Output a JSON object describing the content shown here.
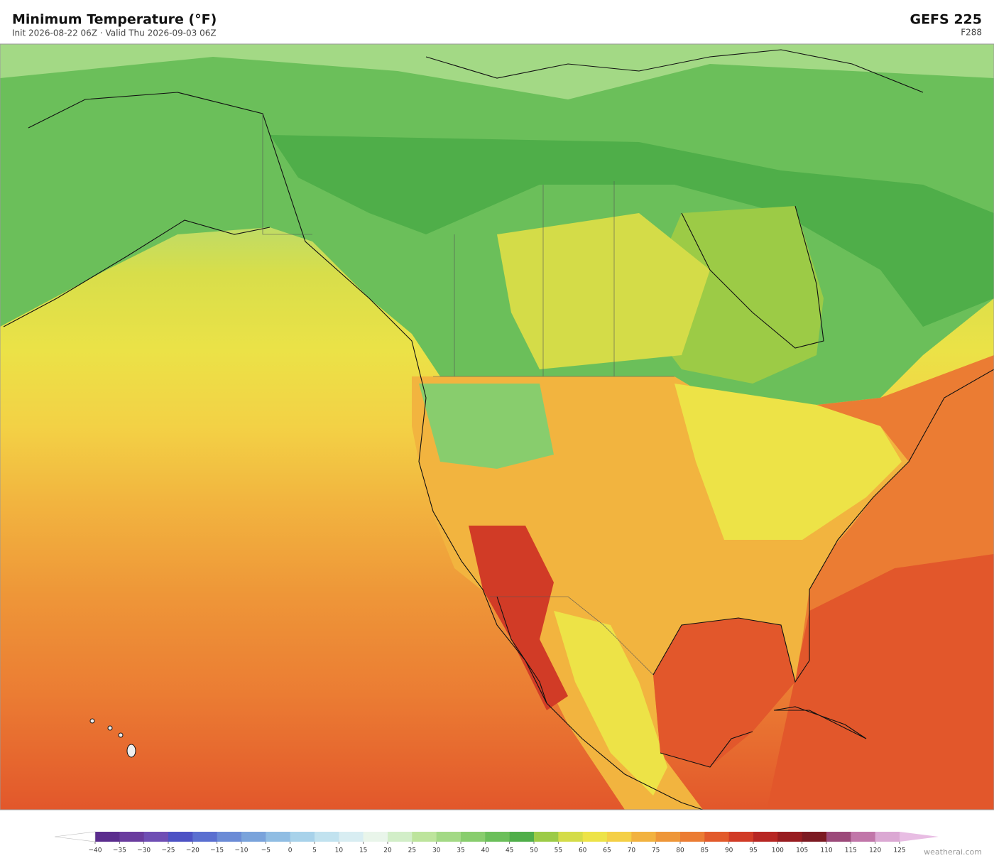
{
  "header": {
    "title": "Minimum Temperature  (°F)",
    "subtitle": "Init 2026-08-22 06Z  ·  Valid Thu 2026-09-03 06Z",
    "model": "GEFS  225",
    "forecast_hour": "F288"
  },
  "colorbar": {
    "ticks": [
      {
        "value": -40,
        "label": "−40"
      },
      {
        "value": -35,
        "label": "−35"
      },
      {
        "value": -30,
        "label": "−30"
      },
      {
        "value": -25,
        "label": "−25"
      },
      {
        "value": -20,
        "label": "−20"
      },
      {
        "value": -15,
        "label": "−15"
      },
      {
        "value": -10,
        "label": "−10"
      },
      {
        "value": -5,
        "label": "−5"
      },
      0,
      5,
      10,
      15,
      20,
      25,
      30,
      35,
      40,
      45,
      50,
      55,
      60,
      65,
      70,
      75,
      80,
      85,
      90,
      95,
      100,
      105,
      110,
      115,
      120,
      125
    ],
    "colors": [
      "#5b2d8e",
      "#6a3c9e",
      "#6f4eb4",
      "#4d52c4",
      "#5a6fd0",
      "#6b8bd6",
      "#7aa3db",
      "#90bde3",
      "#a8d2ea",
      "#c1e2ef",
      "#d8edf2",
      "#e9f5ea",
      "#d2eec8",
      "#bde49c",
      "#a3d985",
      "#88cd6d",
      "#6bbf5a",
      "#4fae49",
      "#9ccb46",
      "#d4dc48",
      "#ede347",
      "#f4cf45",
      "#f2b23f",
      "#ee9638",
      "#eb7c33",
      "#e25a2b",
      "#d13b26",
      "#b72623",
      "#981c20",
      "#7c1a22",
      "#9c4a7a",
      "#c176a9",
      "#dba8d3"
    ],
    "under_color": "#ffffff",
    "over_color": "#e8bde3"
  },
  "footer": {
    "credit": "weatherai.com"
  }
}
